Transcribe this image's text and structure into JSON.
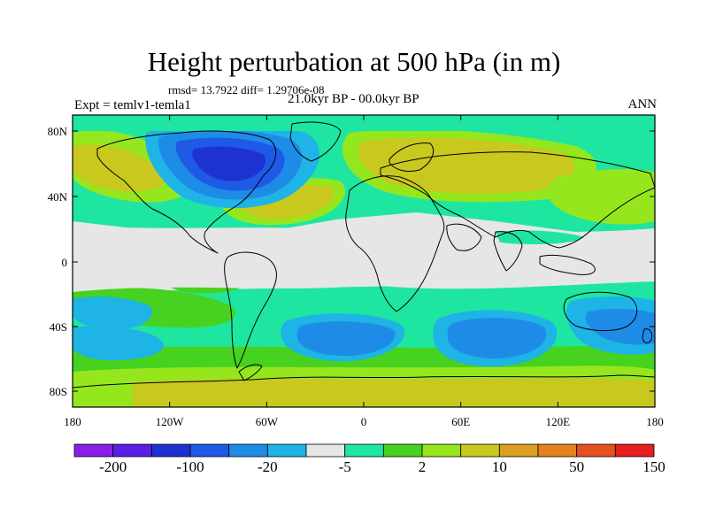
{
  "title": "Height perturbation at 500 hPa (in m)",
  "stats": "rmsd= 13.7922 diff= 1.29706e-08",
  "period": "21.0kyr BP - 00.0kyr BP",
  "experiment": "Expt = temlv1-temla1",
  "season": "ANN",
  "y_ticks": [
    "80N",
    "40N",
    "0",
    "40S",
    "80S"
  ],
  "x_ticks": [
    "180",
    "120W",
    "60W",
    "0",
    "60E",
    "120E",
    "180"
  ],
  "colorbar": {
    "colors": [
      "#8a1ee6",
      "#5a1ee6",
      "#1e32d2",
      "#1e5ae6",
      "#1e8ce6",
      "#1eb4e6",
      "#e6e6e6",
      "#1ee6a0",
      "#46d21e",
      "#96e61e",
      "#c8c81e",
      "#dca01e",
      "#e6821e",
      "#e6501e",
      "#e61e1e"
    ],
    "labels": [
      "-200",
      "-100",
      "-20",
      "-5",
      "2",
      "10",
      "50",
      "150"
    ]
  },
  "palette": {
    "neutral": "#e6e6e6",
    "light_green": "#1ee6a0",
    "green": "#46d21e",
    "yellow_green": "#96e61e",
    "olive": "#c8c81e",
    "sky": "#1eb4e6",
    "blue_light": "#1e8ce6",
    "blue": "#1e5ae6",
    "blue_dark": "#1e32d2",
    "coast": "#000000"
  }
}
